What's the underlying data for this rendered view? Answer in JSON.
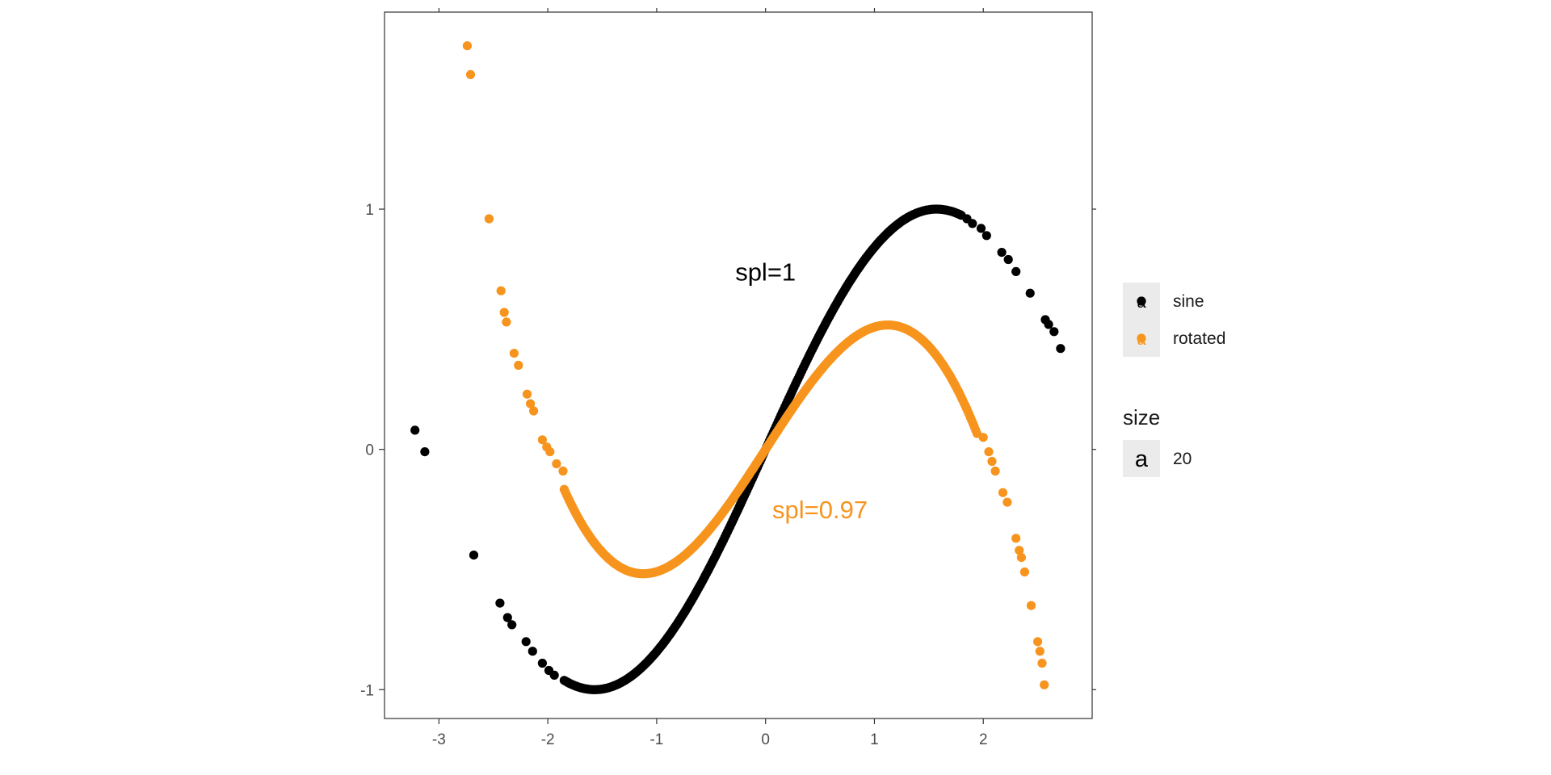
{
  "chart_data": {
    "type": "scatter",
    "xlim": [
      -3.5,
      3.0
    ],
    "ylim": [
      -1.12,
      1.82
    ],
    "x_ticks": [
      -3,
      -2,
      -1,
      0,
      1,
      2
    ],
    "y_ticks": [
      -1,
      0,
      1
    ],
    "x_tick_labels": [
      "-3",
      "-2",
      "-1",
      "0",
      "1",
      "2"
    ],
    "y_tick_labels": [
      "-1",
      "0",
      "1"
    ],
    "grid": false,
    "series": [
      {
        "name": "sine",
        "color": "#000000",
        "sparse_points": [
          [
            -3.22,
            0.08
          ],
          [
            -3.13,
            -0.01
          ],
          [
            -2.68,
            -0.44
          ],
          [
            -2.44,
            -0.64
          ],
          [
            -2.37,
            -0.7
          ],
          [
            -2.33,
            -0.73
          ],
          [
            -2.2,
            -0.8
          ],
          [
            -2.14,
            -0.84
          ],
          [
            -2.05,
            -0.89
          ],
          [
            -1.99,
            -0.92
          ],
          [
            -1.94,
            -0.94
          ],
          [
            1.85,
            0.96
          ],
          [
            1.9,
            0.94
          ],
          [
            1.98,
            0.92
          ],
          [
            2.03,
            0.89
          ],
          [
            2.17,
            0.82
          ],
          [
            2.23,
            0.79
          ],
          [
            2.3,
            0.74
          ],
          [
            2.43,
            0.65
          ],
          [
            2.57,
            0.54
          ],
          [
            2.6,
            0.52
          ],
          [
            2.65,
            0.49
          ],
          [
            2.71,
            0.42
          ]
        ],
        "dense_range": [
          -1.85,
          1.8
        ]
      },
      {
        "name": "rotated",
        "color": "#f7941d",
        "sparse_points": [
          [
            -2.74,
            1.68
          ],
          [
            -2.71,
            1.56
          ],
          [
            -2.54,
            0.96
          ],
          [
            -2.43,
            0.66
          ],
          [
            -2.4,
            0.57
          ],
          [
            -2.38,
            0.53
          ],
          [
            -2.31,
            0.4
          ],
          [
            -2.27,
            0.35
          ],
          [
            -2.19,
            0.23
          ],
          [
            -2.16,
            0.19
          ],
          [
            -2.13,
            0.16
          ],
          [
            -2.05,
            0.04
          ],
          [
            -2.01,
            0.01
          ],
          [
            -1.98,
            -0.01
          ],
          [
            -1.92,
            -0.06
          ],
          [
            -1.86,
            -0.09
          ],
          [
            2.0,
            0.05
          ],
          [
            2.05,
            -0.01
          ],
          [
            2.08,
            -0.05
          ],
          [
            2.11,
            -0.09
          ],
          [
            2.18,
            -0.18
          ],
          [
            2.22,
            -0.22
          ],
          [
            2.3,
            -0.37
          ],
          [
            2.33,
            -0.42
          ],
          [
            2.35,
            -0.45
          ],
          [
            2.38,
            -0.51
          ],
          [
            2.44,
            -0.65
          ],
          [
            2.5,
            -0.8
          ],
          [
            2.52,
            -0.84
          ],
          [
            2.54,
            -0.89
          ],
          [
            2.56,
            -0.98
          ]
        ],
        "dense_range": [
          -1.85,
          1.95
        ]
      }
    ],
    "annotations": [
      {
        "text": "spl=1",
        "x": 0.0,
        "y": 0.74,
        "color": "#000000"
      },
      {
        "text": "spl=0.97",
        "x": 0.5,
        "y": -0.25,
        "color": "#f7941d"
      }
    ],
    "legend": {
      "position": "right",
      "color_items": [
        {
          "label": "sine",
          "color": "#000000"
        },
        {
          "label": "rotated",
          "color": "#f7941d"
        }
      ],
      "key_glyph": "a",
      "size_title": "size",
      "size_items": [
        {
          "label": "20"
        }
      ]
    }
  }
}
